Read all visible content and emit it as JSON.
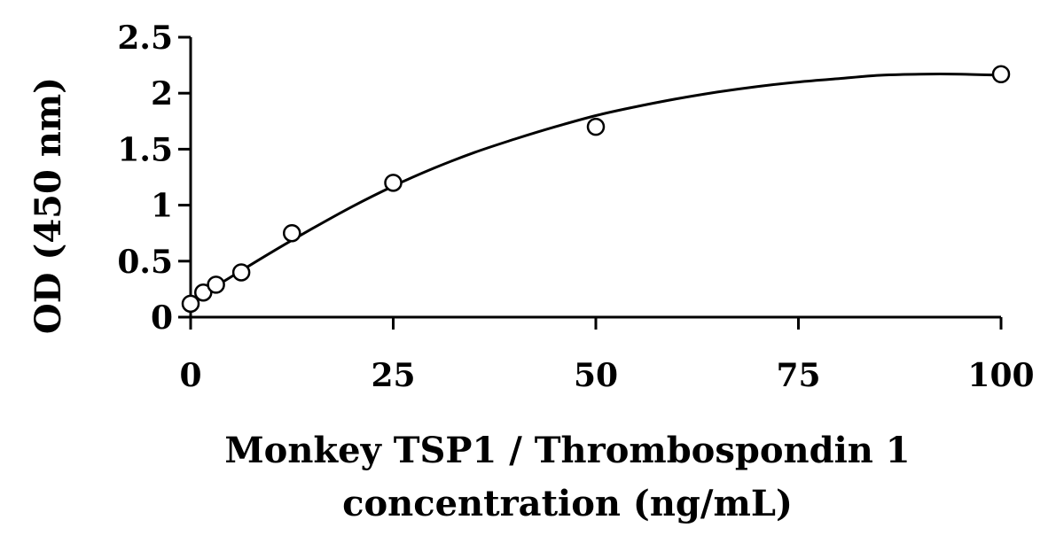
{
  "chart_data": {
    "type": "scatter",
    "xlabel_lines": [
      "Monkey TSP1 / Thrombospondin 1",
      "concentration (ng/mL)"
    ],
    "ylabel": "OD (450 nm)",
    "xlim": [
      0,
      100
    ],
    "ylim": [
      0,
      2.5
    ],
    "x_ticks": [
      0,
      25,
      50,
      75,
      100
    ],
    "x_tick_labels": [
      "0",
      "25",
      "50",
      "75",
      "100"
    ],
    "y_ticks": [
      0,
      0.5,
      1,
      1.5,
      2,
      2.5
    ],
    "y_tick_labels": [
      "0",
      "0.5",
      "1",
      "1.5",
      "2",
      "2.5"
    ],
    "grid": false,
    "marker": "open-circle",
    "points": [
      {
        "x": 0,
        "y": 0.12
      },
      {
        "x": 1.56,
        "y": 0.22
      },
      {
        "x": 3.13,
        "y": 0.29
      },
      {
        "x": 6.25,
        "y": 0.4
      },
      {
        "x": 12.5,
        "y": 0.75
      },
      {
        "x": 25,
        "y": 1.2
      },
      {
        "x": 50,
        "y": 1.7
      },
      {
        "x": 100,
        "y": 2.17
      }
    ],
    "fit_curve": {
      "type": "smooth-fit",
      "points": [
        {
          "x": 0,
          "y": 0.14
        },
        {
          "x": 5,
          "y": 0.36
        },
        {
          "x": 10,
          "y": 0.58
        },
        {
          "x": 15,
          "y": 0.79
        },
        {
          "x": 20,
          "y": 0.99
        },
        {
          "x": 25,
          "y": 1.17
        },
        {
          "x": 30,
          "y": 1.33
        },
        {
          "x": 35,
          "y": 1.47
        },
        {
          "x": 40,
          "y": 1.59
        },
        {
          "x": 45,
          "y": 1.7
        },
        {
          "x": 50,
          "y": 1.8
        },
        {
          "x": 55,
          "y": 1.88
        },
        {
          "x": 60,
          "y": 1.95
        },
        {
          "x": 65,
          "y": 2.01
        },
        {
          "x": 70,
          "y": 2.06
        },
        {
          "x": 75,
          "y": 2.1
        },
        {
          "x": 80,
          "y": 2.13
        },
        {
          "x": 85,
          "y": 2.16
        },
        {
          "x": 90,
          "y": 2.17
        },
        {
          "x": 95,
          "y": 2.17
        },
        {
          "x": 100,
          "y": 2.16
        }
      ]
    }
  }
}
